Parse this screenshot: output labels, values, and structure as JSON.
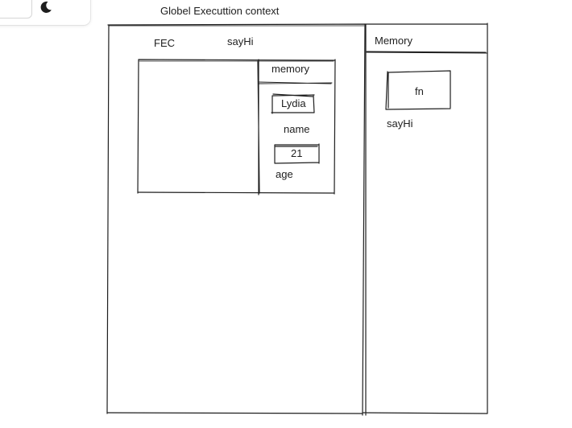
{
  "title": "Globel Executtion context",
  "global_context": {
    "label": "FEC",
    "function_label": "sayHi",
    "inner_memory": {
      "label": "memory",
      "variables": [
        {
          "value": "Lydia",
          "name": "name"
        },
        {
          "value": "21",
          "name": "age"
        }
      ]
    }
  },
  "memory": {
    "label": "Memory",
    "entries": [
      {
        "value": "fn",
        "name": "sayHi"
      }
    ]
  },
  "toolbar": {
    "theme_icon": "moon-icon"
  }
}
